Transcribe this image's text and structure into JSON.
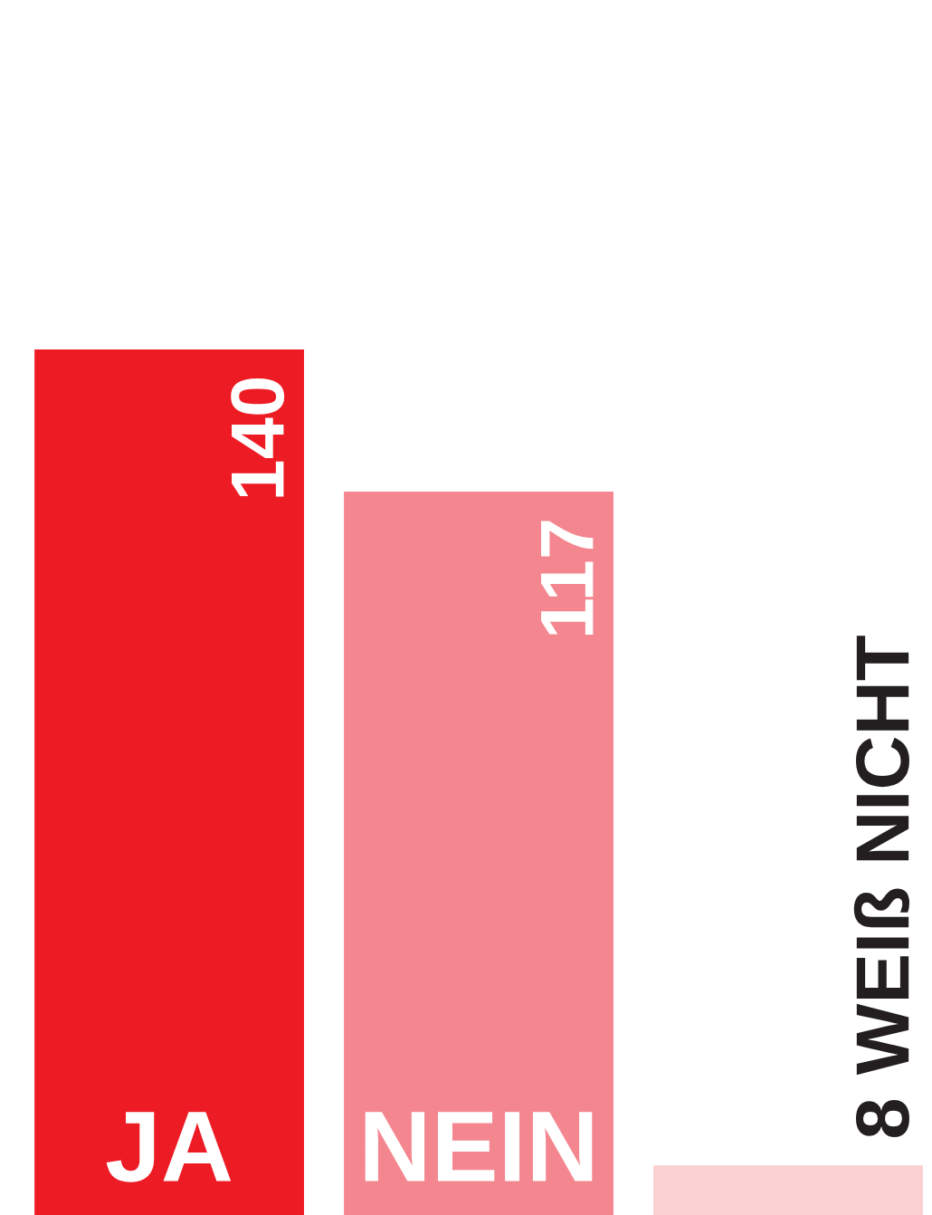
{
  "chart_data": {
    "type": "bar",
    "categories": [
      "JA",
      "NEIN",
      "WEIß NICHT"
    ],
    "values": [
      140,
      117,
      8
    ],
    "colors": [
      "#ed1c24",
      "#f4868f",
      "#fbd0d2"
    ],
    "data_labels": true
  }
}
